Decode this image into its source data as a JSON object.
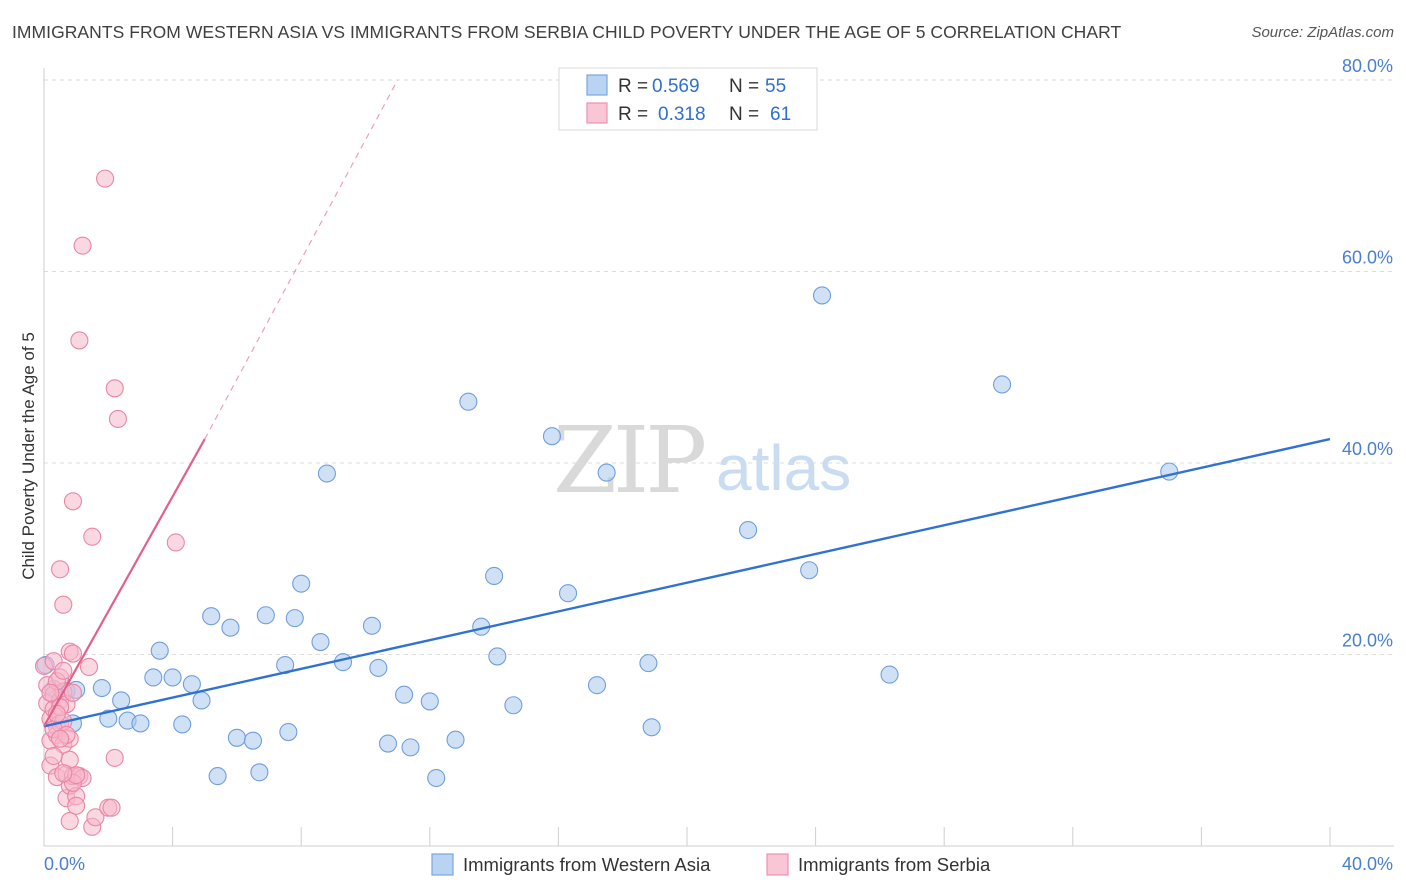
{
  "title": "IMMIGRANTS FROM WESTERN ASIA VS IMMIGRANTS FROM SERBIA CHILD POVERTY UNDER THE AGE OF 5 CORRELATION CHART",
  "source": "Source: ZipAtlas.com",
  "watermark": {
    "zip": "ZIP",
    "atlas": "atlas"
  },
  "colors": {
    "blue_fill": "#a9c8ef",
    "blue_stroke": "#6f9fdc",
    "blue_line": "#2f72d2",
    "pink_fill": "#f6b8cb",
    "pink_stroke": "#ea86a6",
    "pink_line": "#e3608b",
    "tick_text": "#4a7fd0",
    "grid": "#dcdcdc"
  },
  "legend": {
    "rows": [
      {
        "r_label": "R = ",
        "r_value": "0.569",
        "n_label": "N = ",
        "n_value": "55"
      },
      {
        "r_label": "R = ",
        "r_value": "0.318",
        "n_label": "N = ",
        "n_value": "61"
      }
    ]
  },
  "chart_data": {
    "type": "scatter",
    "title": "IMMIGRANTS FROM WESTERN ASIA VS IMMIGRANTS FROM SERBIA CHILD POVERTY UNDER THE AGE OF 5 CORRELATION CHART",
    "xlabel": "",
    "ylabel": "Child Poverty Under the Age of 5",
    "xlim": [
      0,
      40
    ],
    "ylim": [
      0,
      80
    ],
    "x_ticks": [
      "0.0%",
      "40.0%"
    ],
    "y_ticks": [
      "20.0%",
      "40.0%",
      "60.0%",
      "80.0%"
    ],
    "y_tick_values": [
      20,
      40,
      60,
      80
    ],
    "grid": true,
    "legend_placement": "bottom",
    "series": [
      {
        "name": "Immigrants from Western Asia",
        "color": "#a9c8ef",
        "r": 0.569,
        "n": 55,
        "trend": {
          "x": [
            0,
            40
          ],
          "y": [
            12.5,
            42.5
          ]
        },
        "points": [
          [
            0.05,
            18.9
          ],
          [
            0.7,
            16.2
          ],
          [
            0.9,
            12.8
          ],
          [
            1.0,
            16.3
          ],
          [
            1.8,
            16.5
          ],
          [
            2.0,
            13.3
          ],
          [
            2.4,
            15.2
          ],
          [
            2.6,
            13.1
          ],
          [
            3.0,
            12.8
          ],
          [
            3.4,
            17.6
          ],
          [
            3.6,
            20.4
          ],
          [
            4.0,
            17.6
          ],
          [
            4.3,
            12.7
          ],
          [
            4.6,
            16.9
          ],
          [
            4.9,
            15.2
          ],
          [
            5.2,
            24.0
          ],
          [
            5.4,
            7.3
          ],
          [
            5.8,
            22.8
          ],
          [
            6.0,
            11.3
          ],
          [
            6.5,
            11.0
          ],
          [
            6.7,
            7.7
          ],
          [
            6.9,
            24.1
          ],
          [
            7.5,
            18.9
          ],
          [
            7.6,
            11.9
          ],
          [
            7.8,
            23.8
          ],
          [
            8.0,
            27.4
          ],
          [
            8.6,
            21.3
          ],
          [
            8.8,
            38.9
          ],
          [
            9.3,
            19.2
          ],
          [
            10.2,
            23.0
          ],
          [
            10.4,
            18.6
          ],
          [
            10.7,
            10.7
          ],
          [
            11.2,
            15.8
          ],
          [
            11.4,
            10.3
          ],
          [
            12.0,
            15.1
          ],
          [
            12.2,
            7.1
          ],
          [
            12.8,
            11.1
          ],
          [
            13.2,
            46.4
          ],
          [
            13.6,
            22.9
          ],
          [
            14.0,
            28.2
          ],
          [
            14.1,
            19.8
          ],
          [
            14.6,
            14.7
          ],
          [
            15.8,
            42.8
          ],
          [
            16.3,
            26.4
          ],
          [
            17.2,
            16.8
          ],
          [
            17.5,
            39.0
          ],
          [
            18.8,
            19.1
          ],
          [
            18.9,
            12.4
          ],
          [
            21.9,
            33.0
          ],
          [
            23.8,
            28.8
          ],
          [
            24.2,
            57.5
          ],
          [
            26.3,
            17.9
          ],
          [
            29.8,
            48.2
          ],
          [
            35.0,
            39.1
          ],
          [
            0.3,
            16.4
          ]
        ]
      },
      {
        "name": "Immigrants from Serbia",
        "color": "#f6b8cb",
        "r": 0.318,
        "n": 61,
        "trend": {
          "x": [
            0,
            5.0
          ],
          "y": [
            12.5,
            42.5
          ]
        },
        "trend_extension": {
          "x": [
            5.0,
            11.0
          ],
          "y": [
            42.5,
            80
          ]
        },
        "points": [
          [
            0.0,
            18.8
          ],
          [
            0.1,
            16.8
          ],
          [
            0.1,
            14.9
          ],
          [
            0.2,
            13.3
          ],
          [
            0.2,
            11.0
          ],
          [
            0.2,
            8.4
          ],
          [
            0.3,
            19.3
          ],
          [
            0.3,
            15.8
          ],
          [
            0.3,
            14.3
          ],
          [
            0.4,
            12.5
          ],
          [
            0.4,
            11.6
          ],
          [
            0.4,
            7.2
          ],
          [
            0.5,
            28.9
          ],
          [
            0.5,
            17.6
          ],
          [
            0.5,
            15.2
          ],
          [
            0.5,
            12.8
          ],
          [
            0.6,
            25.2
          ],
          [
            0.6,
            16.1
          ],
          [
            0.6,
            13.0
          ],
          [
            0.6,
            10.6
          ],
          [
            0.7,
            14.8
          ],
          [
            0.7,
            7.5
          ],
          [
            0.7,
            5.0
          ],
          [
            0.8,
            20.3
          ],
          [
            0.8,
            11.2
          ],
          [
            0.8,
            9.0
          ],
          [
            0.8,
            6.3
          ],
          [
            0.8,
            2.6
          ],
          [
            0.9,
            36.0
          ],
          [
            0.9,
            20.1
          ],
          [
            0.9,
            16.0
          ],
          [
            0.9,
            7.3
          ],
          [
            1.0,
            5.2
          ],
          [
            1.0,
            4.2
          ],
          [
            1.1,
            52.8
          ],
          [
            1.1,
            7.3
          ],
          [
            1.2,
            62.7
          ],
          [
            1.2,
            7.1
          ],
          [
            1.4,
            18.7
          ],
          [
            1.5,
            2.0
          ],
          [
            1.5,
            32.3
          ],
          [
            1.6,
            3.0
          ],
          [
            1.9,
            69.7
          ],
          [
            2.0,
            4.0
          ],
          [
            2.1,
            4.0
          ],
          [
            2.2,
            47.8
          ],
          [
            2.2,
            9.2
          ],
          [
            2.3,
            44.6
          ],
          [
            4.1,
            31.7
          ],
          [
            0.3,
            12.2
          ],
          [
            0.4,
            17.2
          ],
          [
            0.5,
            14.5
          ],
          [
            0.6,
            18.3
          ],
          [
            0.7,
            11.6
          ],
          [
            0.9,
            6.6
          ],
          [
            1.0,
            7.4
          ],
          [
            0.2,
            16.0
          ],
          [
            0.3,
            9.4
          ],
          [
            0.4,
            13.8
          ],
          [
            0.5,
            11.2
          ],
          [
            0.6,
            7.6
          ]
        ]
      }
    ]
  }
}
